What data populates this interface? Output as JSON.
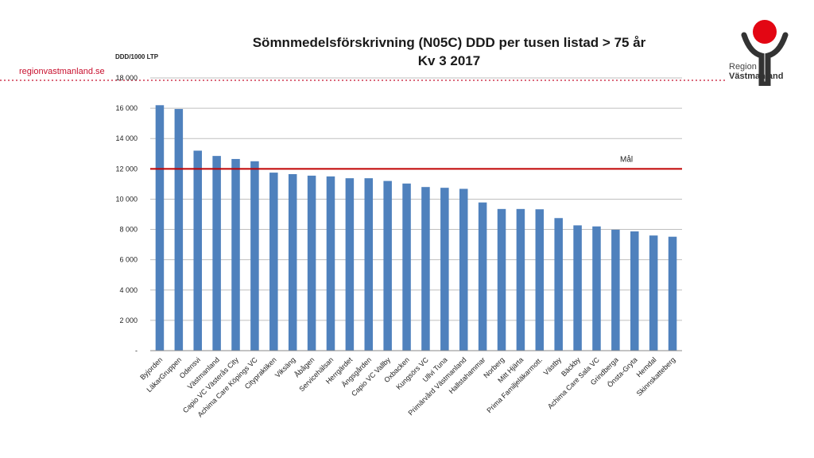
{
  "page": {
    "website": "regionvastmanland.se",
    "logo_region": "Region",
    "logo_name": "Västmanland"
  },
  "colors": {
    "bar": "#4f81bd",
    "target_line": "#c00000",
    "brand_red": "#c8102e",
    "grid": "#bfbfbf"
  },
  "chart_data": {
    "type": "bar",
    "title_line1": "Sömnmedelsförskrivning (N05C) DDD per tusen listad > 75 år",
    "title_line2": "Kv 3 2017",
    "ylabel": "DDD/1000 LTP",
    "ylim": [
      0,
      18000
    ],
    "grid": true,
    "y_ticks": [
      {
        "value": 0,
        "label": "-"
      },
      {
        "value": 2000,
        "label": "2 000"
      },
      {
        "value": 4000,
        "label": "4 000"
      },
      {
        "value": 6000,
        "label": "6 000"
      },
      {
        "value": 8000,
        "label": "8 000"
      },
      {
        "value": 10000,
        "label": "10 000"
      },
      {
        "value": 12000,
        "label": "12 000"
      },
      {
        "value": 14000,
        "label": "14 000"
      },
      {
        "value": 16000,
        "label": "16 000"
      },
      {
        "value": 18000,
        "label": "18 000"
      }
    ],
    "target": {
      "label": "Mål",
      "value": 12000
    },
    "categories": [
      "Byjorden",
      "LäkarGruppen",
      "Odensvi",
      "Västmanland",
      "Capio VC Västerås City",
      "Achima Care Köpings VC",
      "Citypraktiken",
      "Viksäng",
      "Åbågen",
      "Servicehälsan",
      "Herrgärdet",
      "Ängsgården",
      "Capio VC Vallby",
      "Oxbacken",
      "Kungsörs VC",
      "Ullvi Tuna",
      "Primärvård Västmanland",
      "Hallstahammar",
      "Norberg",
      "Mitt Hjärta",
      "Prima Familjeläkarmott.",
      "Västby",
      "Bäckby",
      "Achima Care Sala VC",
      "Grindberga",
      "Önsta-Gryta",
      "Hemdal",
      "Skinnskatteberg"
    ],
    "values": [
      16200,
      15950,
      13200,
      12850,
      12650,
      12500,
      11750,
      11650,
      11550,
      11500,
      11380,
      11380,
      11200,
      11030,
      10800,
      10750,
      10680,
      9780,
      9350,
      9350,
      9330,
      8750,
      8270,
      8200,
      7980,
      7870,
      7600,
      7520
    ]
  }
}
